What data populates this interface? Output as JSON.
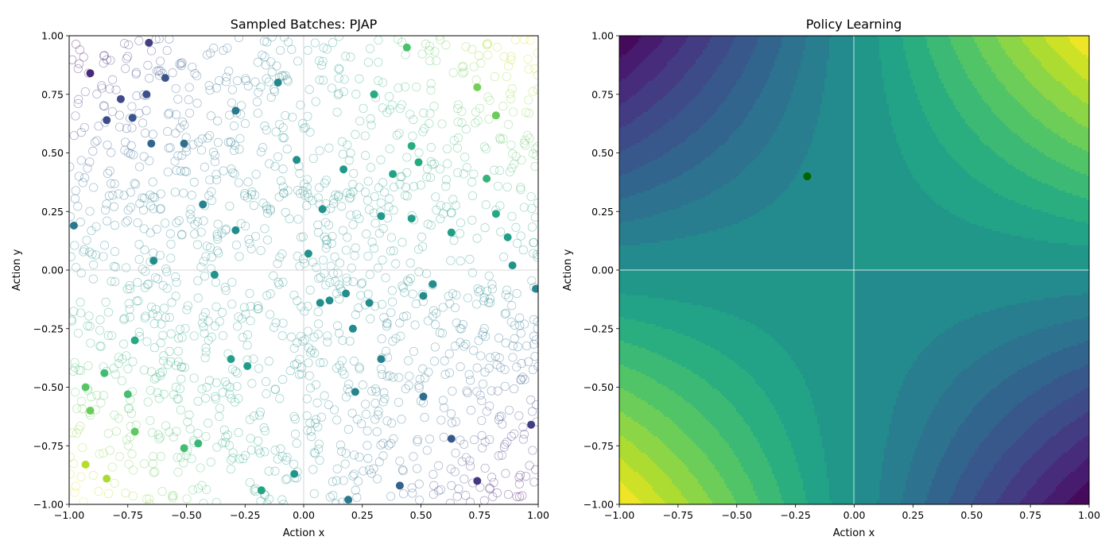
{
  "chart_data": [
    {
      "type": "scatter",
      "title": "Sampled Batches: PJAP",
      "xlabel": "Action x",
      "ylabel": "Action y",
      "xlim": [
        -1,
        1
      ],
      "ylim": [
        -1,
        1
      ],
      "xticks": [
        "−1.00",
        "−0.75",
        "−0.50",
        "−0.25",
        "0.00",
        "0.25",
        "0.50",
        "0.75",
        "1.00"
      ],
      "yticks": [
        "−1.00",
        "−0.75",
        "−0.50",
        "−0.25",
        "0.00",
        "0.25",
        "0.50",
        "0.75",
        "1.00"
      ],
      "grid": false,
      "reference_lines": {
        "x": 0,
        "y": 0
      },
      "colormap": "viridis",
      "color_value": "x * y",
      "background_samples": {
        "count": 1500,
        "x_range": [
          -1,
          1
        ],
        "y_range": [
          -1,
          1
        ],
        "marker": "hollow circle",
        "colored_by": "x * y"
      },
      "highlighted_points": [
        {
          "x": -0.66,
          "y": 0.97
        },
        {
          "x": -0.91,
          "y": 0.84
        },
        {
          "x": -0.59,
          "y": 0.82
        },
        {
          "x": -0.78,
          "y": 0.73
        },
        {
          "x": -0.67,
          "y": 0.75
        },
        {
          "x": -0.73,
          "y": 0.65
        },
        {
          "x": -0.84,
          "y": 0.64
        },
        {
          "x": -0.65,
          "y": 0.54
        },
        {
          "x": -0.51,
          "y": 0.54
        },
        {
          "x": -0.29,
          "y": 0.68
        },
        {
          "x": -0.11,
          "y": 0.8
        },
        {
          "x": 0.44,
          "y": 0.95
        },
        {
          "x": 0.74,
          "y": 0.78
        },
        {
          "x": 0.3,
          "y": 0.75
        },
        {
          "x": 0.82,
          "y": 0.66
        },
        {
          "x": -0.03,
          "y": 0.47
        },
        {
          "x": 0.17,
          "y": 0.43
        },
        {
          "x": 0.38,
          "y": 0.41
        },
        {
          "x": 0.46,
          "y": 0.53
        },
        {
          "x": 0.49,
          "y": 0.46
        },
        {
          "x": 0.78,
          "y": 0.39
        },
        {
          "x": 0.08,
          "y": 0.26
        },
        {
          "x": 0.33,
          "y": 0.23
        },
        {
          "x": 0.46,
          "y": 0.22
        },
        {
          "x": 0.63,
          "y": 0.16
        },
        {
          "x": 0.82,
          "y": 0.24
        },
        {
          "x": 0.87,
          "y": 0.14
        },
        {
          "x": 0.89,
          "y": 0.02
        },
        {
          "x": -0.43,
          "y": 0.28
        },
        {
          "x": -0.29,
          "y": 0.17
        },
        {
          "x": -0.64,
          "y": 0.04
        },
        {
          "x": -0.98,
          "y": 0.19
        },
        {
          "x": 0.02,
          "y": 0.07
        },
        {
          "x": -0.38,
          "y": -0.02
        },
        {
          "x": 0.99,
          "y": -0.08
        },
        {
          "x": 0.55,
          "y": -0.06
        },
        {
          "x": 0.51,
          "y": -0.11
        },
        {
          "x": 0.18,
          "y": -0.1
        },
        {
          "x": 0.11,
          "y": -0.13
        },
        {
          "x": 0.07,
          "y": -0.14
        },
        {
          "x": 0.28,
          "y": -0.14
        },
        {
          "x": 0.21,
          "y": -0.25
        },
        {
          "x": 0.33,
          "y": -0.38
        },
        {
          "x": -0.31,
          "y": -0.38
        },
        {
          "x": -0.24,
          "y": -0.41
        },
        {
          "x": 0.22,
          "y": -0.52
        },
        {
          "x": 0.51,
          "y": -0.54
        },
        {
          "x": -0.72,
          "y": -0.3
        },
        {
          "x": -0.85,
          "y": -0.44
        },
        {
          "x": -0.93,
          "y": -0.5
        },
        {
          "x": -0.75,
          "y": -0.53
        },
        {
          "x": -0.91,
          "y": -0.6
        },
        {
          "x": -0.72,
          "y": -0.69
        },
        {
          "x": -0.45,
          "y": -0.74
        },
        {
          "x": -0.51,
          "y": -0.76
        },
        {
          "x": -0.93,
          "y": -0.83
        },
        {
          "x": -0.84,
          "y": -0.89
        },
        {
          "x": -0.18,
          "y": -0.94
        },
        {
          "x": -0.04,
          "y": -0.87
        },
        {
          "x": 0.19,
          "y": -0.98
        },
        {
          "x": 0.41,
          "y": -0.92
        },
        {
          "x": 0.63,
          "y": -0.72
        },
        {
          "x": 0.74,
          "y": -0.9
        },
        {
          "x": 0.97,
          "y": -0.66
        }
      ]
    },
    {
      "type": "heatmap",
      "title": "Policy Learning",
      "xlabel": "Action x",
      "ylabel": "Action y",
      "xlim": [
        -1,
        1
      ],
      "ylim": [
        -1,
        1
      ],
      "xticks": [
        "−1.00",
        "−0.75",
        "−0.50",
        "−0.25",
        "0.00",
        "0.25",
        "0.50",
        "0.75",
        "1.00"
      ],
      "yticks": [
        "−1.00",
        "−0.75",
        "−0.50",
        "−0.25",
        "0.00",
        "0.25",
        "0.50",
        "0.75",
        "1.00"
      ],
      "style": "filled contour",
      "colormap": "viridis",
      "function": "x * y",
      "value_range": [
        -1,
        1
      ],
      "levels": 20,
      "reference_lines": {
        "x": 0,
        "y": 0
      },
      "policy_point": {
        "x": -0.2,
        "y": 0.4,
        "color": "#006400"
      }
    }
  ]
}
